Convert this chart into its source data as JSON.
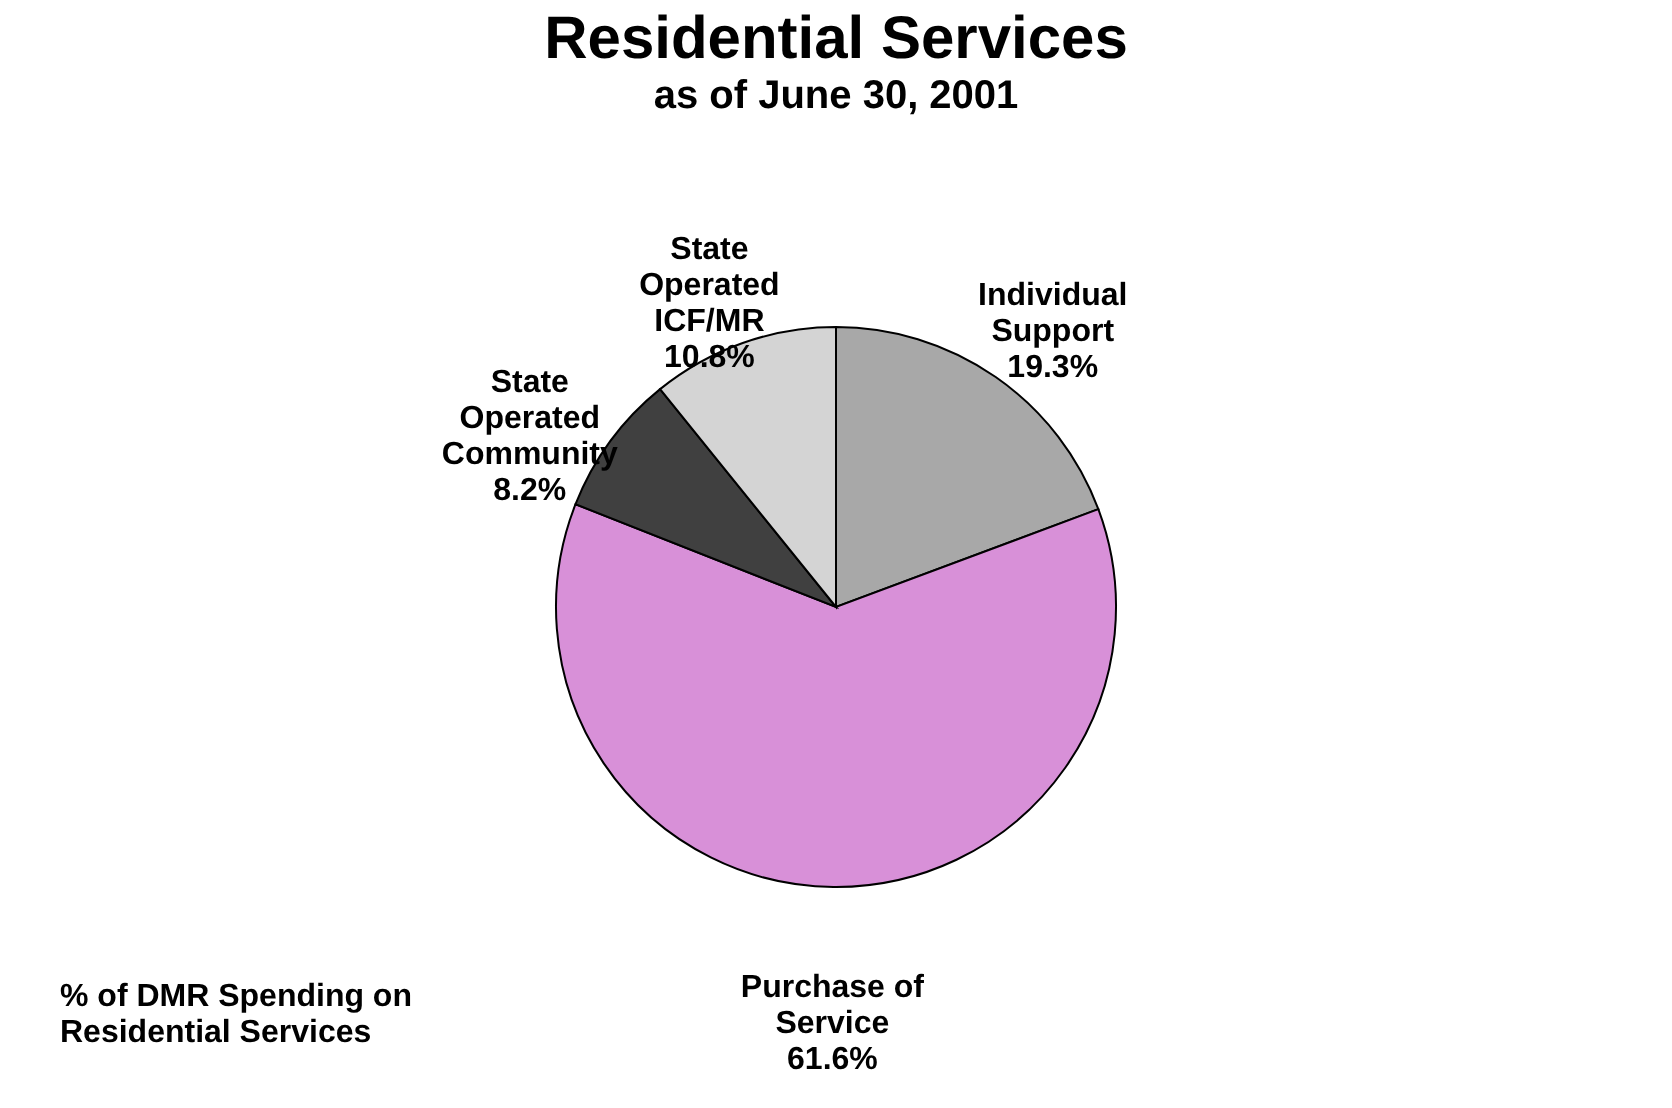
{
  "chart_data": {
    "type": "pie",
    "title": "Residential Services",
    "subtitle": "as of June 30, 2001",
    "categories": [
      "Individual Support",
      "Purchase of Service",
      "State Operated Community",
      "State Operated ICF/MR"
    ],
    "values": [
      19.3,
      61.6,
      8.2,
      10.8
    ],
    "value_labels": [
      "19.3%",
      "61.6%",
      "8.2%",
      "10.8%"
    ],
    "colors": [
      "#a8a8a8",
      "#d890d8",
      "#404040",
      "#d4d4d4"
    ],
    "legend": false,
    "annotations": [
      "% of DMR Spending on Residential Services"
    ]
  }
}
